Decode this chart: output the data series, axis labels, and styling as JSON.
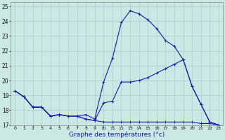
{
  "title": "Graphe des températures (°c)",
  "bg_color": "#cce8e4",
  "line_color": "#1a1aaa",
  "grid_color": "#aacccc",
  "xlim": [
    -0.5,
    23.5
  ],
  "ylim": [
    17,
    25.3
  ],
  "yticks": [
    17,
    18,
    19,
    20,
    21,
    22,
    23,
    24,
    25
  ],
  "xticks": [
    0,
    1,
    2,
    3,
    4,
    5,
    6,
    7,
    8,
    9,
    10,
    11,
    12,
    13,
    14,
    15,
    16,
    17,
    18,
    19,
    20,
    21,
    22,
    23
  ],
  "series": [
    {
      "x": [
        0,
        1,
        2,
        3,
        4,
        5,
        6,
        7,
        8,
        9,
        10,
        11,
        12,
        13,
        14,
        15,
        16,
        17,
        18,
        19,
        20,
        21,
        22,
        23
      ],
      "y": [
        19.3,
        18.9,
        18.2,
        18.2,
        17.6,
        17.7,
        17.6,
        17.6,
        17.7,
        17.4,
        19.9,
        21.5,
        23.9,
        24.7,
        24.5,
        24.1,
        23.5,
        22.7,
        22.3,
        21.4,
        19.6,
        18.4,
        17.2,
        17.0
      ]
    },
    {
      "x": [
        0,
        1,
        2,
        3,
        4,
        5,
        6,
        7,
        8,
        9,
        10,
        11,
        12,
        13,
        14,
        15,
        16,
        17,
        18,
        19,
        20,
        21,
        22,
        23
      ],
      "y": [
        19.3,
        18.9,
        18.2,
        18.2,
        17.6,
        17.7,
        17.6,
        17.6,
        17.4,
        17.3,
        18.5,
        18.6,
        19.9,
        19.9,
        20.0,
        20.2,
        20.5,
        20.8,
        21.1,
        21.4,
        19.6,
        18.4,
        17.2,
        17.0
      ]
    },
    {
      "x": [
        0,
        1,
        2,
        3,
        4,
        5,
        6,
        7,
        8,
        9,
        10,
        11,
        12,
        13,
        14,
        15,
        16,
        17,
        18,
        19,
        20,
        21,
        22,
        23
      ],
      "y": [
        19.3,
        18.9,
        18.2,
        18.2,
        17.6,
        17.7,
        17.6,
        17.6,
        17.4,
        17.3,
        17.2,
        17.2,
        17.2,
        17.2,
        17.2,
        17.2,
        17.2,
        17.2,
        17.2,
        17.2,
        17.2,
        17.1,
        17.1,
        17.0
      ]
    }
  ]
}
